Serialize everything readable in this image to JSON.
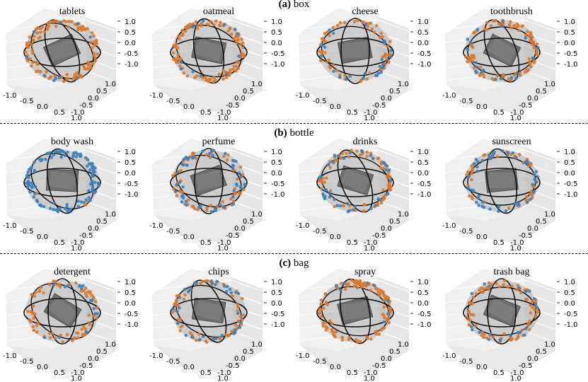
{
  "figure": {
    "groups": [
      {
        "label": "(a)",
        "name": "box"
      },
      {
        "label": "(b)",
        "name": "bottle"
      },
      {
        "label": "(c)",
        "name": "bag"
      }
    ]
  },
  "chart_data": [
    {
      "type": "scatter",
      "group": "box",
      "title": "tablets",
      "axes": "3d",
      "x_ticks": [
        "-1.0",
        "-0.5",
        "0.0",
        "0.5",
        "1.0"
      ],
      "y_ticks": [
        "-1.0",
        "-0.5",
        "0.0",
        "0.5",
        "1.0"
      ],
      "z_ticks": [
        "-1.0",
        "-0.5",
        "0.0",
        "0.5",
        "1.0"
      ],
      "xlim": [
        -1,
        1
      ],
      "ylim": [
        -1,
        1
      ],
      "zlim": [
        -1,
        1
      ],
      "series": [
        {
          "name": "orange points",
          "color": "#d9782d",
          "count": 110
        },
        {
          "name": "blue points",
          "color": "#3b7fbf",
          "count": 10
        }
      ],
      "shapes": [
        "translucent unit sphere",
        "orientation rings",
        "box mesh"
      ]
    },
    {
      "type": "scatter",
      "group": "box",
      "title": "oatmeal",
      "axes": "3d",
      "x_ticks": [
        "-1.0",
        "-0.5",
        "0.0",
        "0.5",
        "1.0"
      ],
      "y_ticks": [
        "-1.0",
        "-0.5",
        "0.0",
        "0.5",
        "1.0"
      ],
      "z_ticks": [
        "-1.0",
        "-0.5",
        "0.0",
        "0.5",
        "1.0"
      ],
      "xlim": [
        -1,
        1
      ],
      "ylim": [
        -1,
        1
      ],
      "zlim": [
        -1,
        1
      ],
      "series": [
        {
          "name": "orange points",
          "color": "#d9782d",
          "count": 105
        },
        {
          "name": "blue points",
          "color": "#3b7fbf",
          "count": 12
        }
      ],
      "shapes": [
        "translucent unit sphere",
        "orientation rings",
        "box mesh"
      ]
    },
    {
      "type": "scatter",
      "group": "box",
      "title": "cheese",
      "axes": "3d",
      "x_ticks": [
        "-1.0",
        "-0.5",
        "0.0",
        "0.5",
        "1.0"
      ],
      "y_ticks": [
        "-1.0",
        "-0.5",
        "0.0",
        "0.5",
        "1.0"
      ],
      "z_ticks": [
        "-1.0",
        "-0.5",
        "0.0",
        "0.5",
        "1.0"
      ],
      "xlim": [
        -1,
        1
      ],
      "ylim": [
        -1,
        1
      ],
      "zlim": [
        -1,
        1
      ],
      "series": [
        {
          "name": "orange points",
          "color": "#d9782d",
          "count": 60
        },
        {
          "name": "blue points",
          "color": "#3b7fbf",
          "count": 25
        }
      ],
      "shapes": [
        "translucent unit sphere",
        "orientation rings",
        "box mesh"
      ]
    },
    {
      "type": "scatter",
      "group": "box",
      "title": "toothbrush",
      "axes": "3d",
      "x_ticks": [
        "-1.0",
        "-0.5",
        "0.0",
        "0.5",
        "1.0"
      ],
      "y_ticks": [
        "-1.0",
        "-0.5",
        "0.0",
        "0.5",
        "1.0"
      ],
      "z_ticks": [
        "-1.0",
        "-0.5",
        "0.0",
        "0.5",
        "1.0"
      ],
      "xlim": [
        -1,
        1
      ],
      "ylim": [
        -1,
        1
      ],
      "zlim": [
        -1,
        1
      ],
      "series": [
        {
          "name": "orange points",
          "color": "#d9782d",
          "count": 95
        },
        {
          "name": "blue points",
          "color": "#3b7fbf",
          "count": 20
        }
      ],
      "shapes": [
        "translucent unit sphere",
        "orientation rings",
        "box mesh"
      ]
    },
    {
      "type": "scatter",
      "group": "bottle",
      "title": "body wash",
      "axes": "3d",
      "x_ticks": [
        "-1.0",
        "-0.5",
        "0.0",
        "0.5",
        "1.0"
      ],
      "y_ticks": [
        "-1.0",
        "-0.5",
        "0.0",
        "0.5",
        "1.0"
      ],
      "z_ticks": [
        "-1.0",
        "-0.5",
        "0.0",
        "0.5",
        "1.0"
      ],
      "xlim": [
        -1,
        1
      ],
      "ylim": [
        -1,
        1
      ],
      "zlim": [
        -1,
        1
      ],
      "series": [
        {
          "name": "orange points",
          "color": "#d9782d",
          "count": 5
        },
        {
          "name": "blue points",
          "color": "#3b7fbf",
          "count": 110
        }
      ],
      "shapes": [
        "translucent unit sphere",
        "orientation rings",
        "bottle mesh"
      ]
    },
    {
      "type": "scatter",
      "group": "bottle",
      "title": "perfume",
      "axes": "3d",
      "x_ticks": [
        "-1.0",
        "-0.5",
        "0.0",
        "0.5",
        "1.0"
      ],
      "y_ticks": [
        "-1.0",
        "-0.5",
        "0.0",
        "0.5",
        "1.0"
      ],
      "z_ticks": [
        "-1.0",
        "-0.5",
        "0.0",
        "0.5",
        "1.0"
      ],
      "xlim": [
        -1,
        1
      ],
      "ylim": [
        -1,
        1
      ],
      "zlim": [
        -1,
        1
      ],
      "series": [
        {
          "name": "orange points",
          "color": "#d9782d",
          "count": 60
        },
        {
          "name": "blue points",
          "color": "#3b7fbf",
          "count": 50
        }
      ],
      "shapes": [
        "translucent unit sphere",
        "orientation rings",
        "bottle mesh"
      ]
    },
    {
      "type": "scatter",
      "group": "bottle",
      "title": "drinks",
      "axes": "3d",
      "x_ticks": [
        "-1.0",
        "-0.5",
        "0.0",
        "0.5",
        "1.0"
      ],
      "y_ticks": [
        "-1.0",
        "-0.5",
        "0.0",
        "0.5",
        "1.0"
      ],
      "z_ticks": [
        "-1.0",
        "-0.5",
        "0.0",
        "0.5",
        "1.0"
      ],
      "xlim": [
        -1,
        1
      ],
      "ylim": [
        -1,
        1
      ],
      "zlim": [
        -1,
        1
      ],
      "series": [
        {
          "name": "orange points",
          "color": "#d9782d",
          "count": 70
        },
        {
          "name": "blue points",
          "color": "#3b7fbf",
          "count": 40
        }
      ],
      "shapes": [
        "translucent unit sphere",
        "orientation rings",
        "bottle mesh"
      ]
    },
    {
      "type": "scatter",
      "group": "bottle",
      "title": "sunscreen",
      "axes": "3d",
      "x_ticks": [
        "-1.0",
        "-0.5",
        "0.0",
        "0.5",
        "1.0"
      ],
      "y_ticks": [
        "-1.0",
        "-0.5",
        "0.0",
        "0.5",
        "1.0"
      ],
      "z_ticks": [
        "-1.0",
        "-0.5",
        "0.0",
        "0.5",
        "1.0"
      ],
      "xlim": [
        -1,
        1
      ],
      "ylim": [
        -1,
        1
      ],
      "zlim": [
        -1,
        1
      ],
      "series": [
        {
          "name": "orange points",
          "color": "#d9782d",
          "count": 50
        },
        {
          "name": "blue points",
          "color": "#3b7fbf",
          "count": 50
        }
      ],
      "shapes": [
        "translucent unit sphere",
        "orientation rings",
        "bottle mesh"
      ]
    },
    {
      "type": "scatter",
      "group": "bag",
      "title": "detergent",
      "axes": "3d",
      "x_ticks": [
        "-1.0",
        "-0.5",
        "0.0",
        "0.5",
        "1.0"
      ],
      "y_ticks": [
        "-1.0",
        "-0.5",
        "0.0",
        "0.5",
        "1.0"
      ],
      "z_ticks": [
        "-1.0",
        "-0.5",
        "0.0",
        "0.5",
        "1.0"
      ],
      "xlim": [
        -1,
        1
      ],
      "ylim": [
        -1,
        1
      ],
      "zlim": [
        -1,
        1
      ],
      "series": [
        {
          "name": "orange points",
          "color": "#d9782d",
          "count": 70
        },
        {
          "name": "blue points",
          "color": "#3b7fbf",
          "count": 15
        }
      ],
      "shapes": [
        "translucent unit sphere",
        "orientation rings",
        "bag mesh"
      ]
    },
    {
      "type": "scatter",
      "group": "bag",
      "title": "chips",
      "axes": "3d",
      "x_ticks": [
        "-1.0",
        "-0.5",
        "0.0",
        "0.5",
        "1.0"
      ],
      "y_ticks": [
        "-1.0",
        "-0.5",
        "0.0",
        "0.5",
        "1.0"
      ],
      "z_ticks": [
        "-1.0",
        "-0.5",
        "0.0",
        "0.5",
        "1.0"
      ],
      "xlim": [
        -1,
        1
      ],
      "ylim": [
        -1,
        1
      ],
      "zlim": [
        -1,
        1
      ],
      "series": [
        {
          "name": "orange points",
          "color": "#d9782d",
          "count": 60
        },
        {
          "name": "blue points",
          "color": "#3b7fbf",
          "count": 35
        }
      ],
      "shapes": [
        "translucent unit sphere",
        "orientation rings",
        "bag mesh"
      ]
    },
    {
      "type": "scatter",
      "group": "bag",
      "title": "spray",
      "axes": "3d",
      "x_ticks": [
        "-1.0",
        "-0.5",
        "0.0",
        "0.5",
        "1.0"
      ],
      "y_ticks": [
        "-1.0",
        "-0.5",
        "0.0",
        "0.5",
        "1.0"
      ],
      "z_ticks": [
        "-1.0",
        "-0.5",
        "0.0",
        "0.5",
        "1.0"
      ],
      "xlim": [
        -1,
        1
      ],
      "ylim": [
        -1,
        1
      ],
      "zlim": [
        -1,
        1
      ],
      "series": [
        {
          "name": "orange points",
          "color": "#d9782d",
          "count": 115
        },
        {
          "name": "blue points",
          "color": "#3b7fbf",
          "count": 8
        }
      ],
      "shapes": [
        "translucent unit sphere",
        "orientation rings",
        "bag mesh"
      ]
    },
    {
      "type": "scatter",
      "group": "bag",
      "title": "trash bag",
      "axes": "3d",
      "x_ticks": [
        "-1.0",
        "-0.5",
        "0.0",
        "0.5",
        "1.0"
      ],
      "y_ticks": [
        "-1.0",
        "-0.5",
        "0.0",
        "0.5",
        "1.0"
      ],
      "z_ticks": [
        "-1.0",
        "-0.5",
        "0.0",
        "0.5",
        "1.0"
      ],
      "xlim": [
        -1,
        1
      ],
      "ylim": [
        -1,
        1
      ],
      "zlim": [
        -1,
        1
      ],
      "series": [
        {
          "name": "orange points",
          "color": "#d9782d",
          "count": 80
        },
        {
          "name": "blue points",
          "color": "#3b7fbf",
          "count": 20
        }
      ],
      "shapes": [
        "translucent unit sphere",
        "orientation rings",
        "bag mesh"
      ]
    }
  ]
}
